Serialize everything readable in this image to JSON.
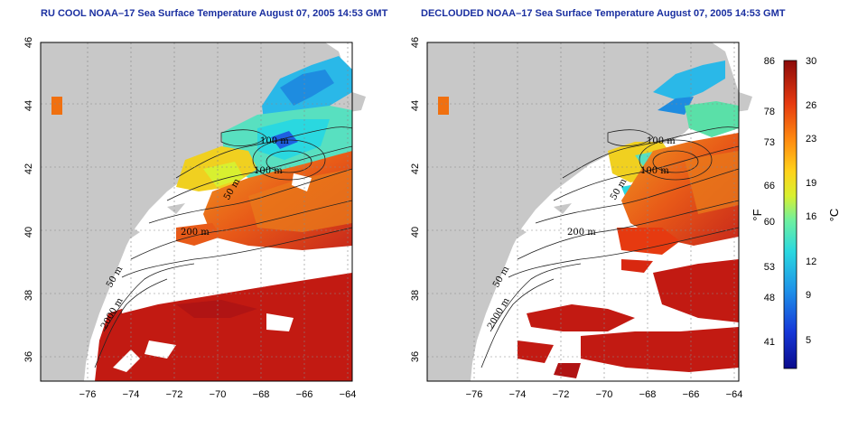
{
  "panels": [
    {
      "title": "RU COOL NOAA–17 Sea Surface Temperature August 07, 2005 14:53 GMT",
      "contour_labels": [
        "100 m",
        "100 m",
        "50 m",
        "200 m",
        "50 m",
        "2000 m"
      ],
      "clouded": true
    },
    {
      "title": "DECLOUDED NOAA–17 Sea Surface Temperature August 07, 2005 14:53 GMT",
      "contour_labels": [
        "100 m",
        "100 m",
        "50 m",
        "200 m",
        "50 m",
        "2000 m"
      ],
      "clouded": false
    }
  ],
  "axes": {
    "x_ticks": [
      "−76",
      "−74",
      "−72",
      "−70",
      "−68",
      "−66",
      "−64"
    ],
    "y_ticks": [
      "46",
      "44",
      "42",
      "40",
      "38",
      "36"
    ],
    "x_range": [
      -77,
      -63
    ],
    "y_range": [
      35,
      46
    ]
  },
  "colorbar": {
    "fahrenheit_ticks": [
      "86",
      "78",
      "73",
      "66",
      "60",
      "53",
      "48",
      "41"
    ],
    "celsius_ticks": [
      "30",
      "26",
      "23",
      "19",
      "16",
      "12",
      "9",
      "5"
    ],
    "fahrenheit_label": "°F",
    "celsius_label": "°C",
    "range_c": [
      2,
      30
    ]
  },
  "colors": {
    "land": "#c8c8c8",
    "water_cloud": "#ffffff",
    "title": "#1a2fa0",
    "warm": "#c21a12",
    "cold": "#1428b4"
  }
}
